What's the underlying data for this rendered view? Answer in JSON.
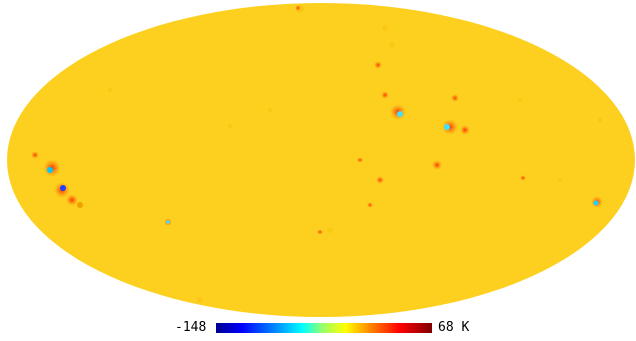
{
  "map": {
    "projection": "mollweide",
    "background_color": "#fdd020",
    "hotspot_colors": [
      "#ff0000",
      "#800000",
      "#00ffff",
      "#0000ff",
      "#a0ff60"
    ]
  },
  "colorbar": {
    "min_label": "-148",
    "max_label": "68 K",
    "colormap": "jet"
  }
}
